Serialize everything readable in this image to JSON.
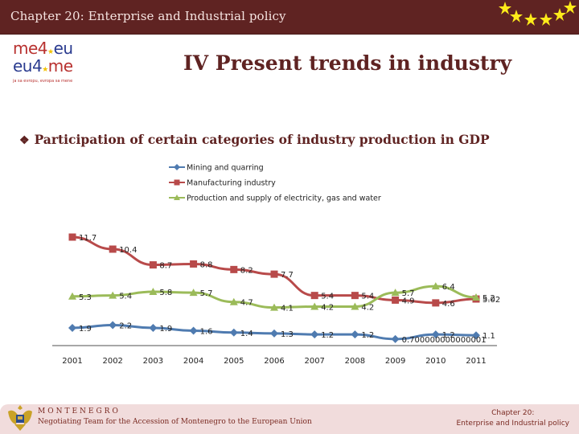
{
  "header": {
    "title": "Chapter 20: Enterprise and Industrial policy",
    "stars_icon": "eu-stars-icon"
  },
  "logo": {
    "line1_a": "me4",
    "line1_b": "eu",
    "line2_a": "eu4",
    "line2_b": "me",
    "tagline": "ja sa evropu, evropa sa mene"
  },
  "page_title": "IV Present trends in industry",
  "subtitle": {
    "bullet": "❖",
    "text": "Participation of certain categories of industry production in GDP"
  },
  "colors": {
    "header_bg": "#5f2322",
    "title": "#5f2322",
    "mining": "#4f7bb0",
    "manufacturing": "#b84a4a",
    "electricity": "#9bbb59",
    "footer_bg": "#f1dcdc"
  },
  "chart_data": {
    "type": "line",
    "title": "",
    "xlabel": "",
    "ylabel": "",
    "x": [
      "2001",
      "2002",
      "2003",
      "2004",
      "2005",
      "2006",
      "2007",
      "2008",
      "2009",
      "2010",
      "2011"
    ],
    "ylim": [
      0,
      12
    ],
    "grid": false,
    "legend_position": "top",
    "series": [
      {
        "name": "Mining and quarring",
        "marker": "diamond",
        "color": "#4f7bb0",
        "values": [
          1.9,
          2.2,
          1.9,
          1.6,
          1.4,
          1.3,
          1.2,
          1.2,
          0.7,
          1.2,
          1.1
        ],
        "labels": [
          "1.9",
          "2.2",
          "1.9",
          "1.6",
          "1.4",
          "1.3",
          "1.2",
          "1.2",
          "0.700000000000001",
          "1.2",
          "1.1"
        ]
      },
      {
        "name": "Manufacturing industry",
        "marker": "square",
        "color": "#b84a4a",
        "values": [
          11.7,
          10.4,
          8.7,
          8.8,
          8.2,
          7.7,
          5.4,
          5.4,
          4.9,
          4.6,
          5.02
        ],
        "labels": [
          "11.7",
          "10.4",
          "8.7",
          "8.8",
          "8.2",
          "7.7",
          "5.4",
          "5.4",
          "4.9",
          "4.6",
          "5.02"
        ]
      },
      {
        "name": "Production and supply of electricity, gas and water",
        "marker": "triangle",
        "color": "#9bbb59",
        "values": [
          5.3,
          5.4,
          5.8,
          5.7,
          4.7,
          4.1,
          4.2,
          4.2,
          5.7,
          6.4,
          5.2
        ],
        "labels": [
          "5.3",
          "5.4",
          "5.8",
          "5.7",
          "4.7",
          "4.1",
          "4.2",
          "4.2",
          "5.7",
          "6.4",
          "5.2"
        ]
      }
    ]
  },
  "footer": {
    "country": "MONTENEGRO",
    "team": "Negotiating Team for the Accession of  Montenegro to the European Union",
    "chapter_line1": "Chapter 20:",
    "chapter_line2": "Enterprise and Industrial policy"
  }
}
